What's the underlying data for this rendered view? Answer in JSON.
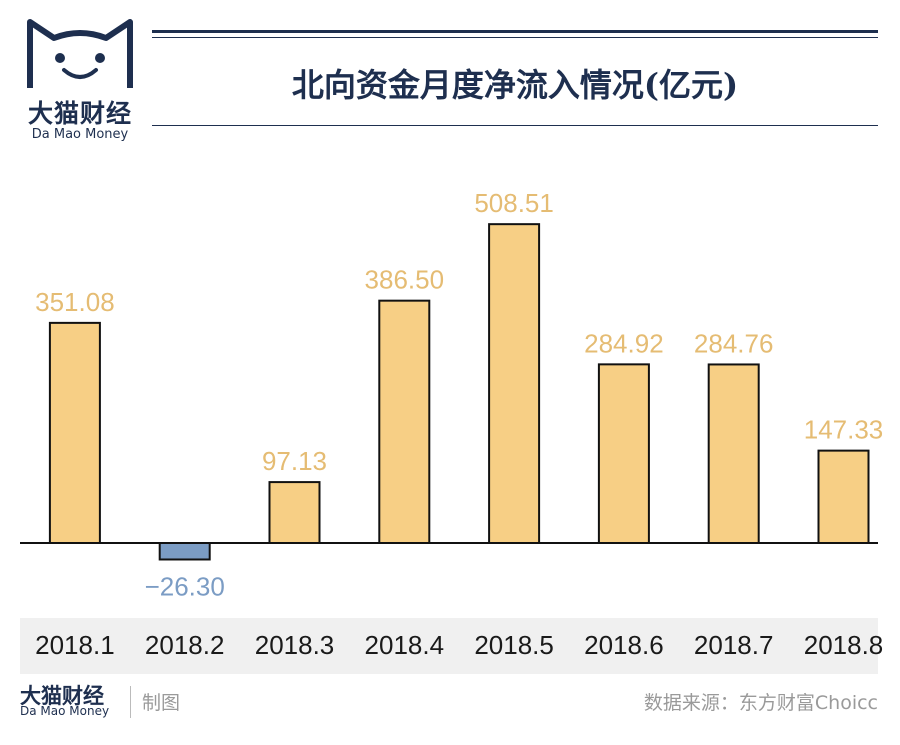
{
  "brand": {
    "name_cn": "大猫财经",
    "name_en": "Da Mao Money"
  },
  "title": "北向资金月度净流入情况(亿元)",
  "footer": {
    "brand_cn": "大猫财经",
    "brand_en": "Da Mao Money",
    "maker": "制图",
    "source": "数据来源：东方财富Choicc"
  },
  "colors": {
    "positive_bar": "#f7cf85",
    "negative_bar": "#7b9cc4",
    "positive_label": "#e5bc73",
    "negative_label": "#7b9cc4",
    "brand_navy": "#1e2f4f"
  },
  "chart_data": {
    "type": "bar",
    "title": "北向资金月度净流入情况(亿元)",
    "categories": [
      "2018.1",
      "2018.2",
      "2018.3",
      "2018.4",
      "2018.5",
      "2018.6",
      "2018.7",
      "2018.8"
    ],
    "values": [
      351.08,
      -26.3,
      97.13,
      386.5,
      508.51,
      284.92,
      284.76,
      147.33
    ],
    "value_labels": [
      "351.08",
      "−26.30",
      "97.13",
      "386.50",
      "508.51",
      "284.92",
      "284.76",
      "147.33"
    ],
    "xlabel": "",
    "ylabel": "",
    "ylim": [
      -35,
      580
    ],
    "grid": false,
    "legend": "none"
  }
}
